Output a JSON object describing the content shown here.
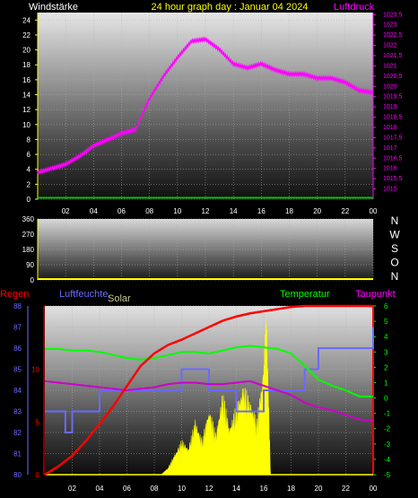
{
  "header": {
    "left_label": "Windstärke",
    "title": "24 hour graph day : Januar 04 2024",
    "right_label": "Luftdruck"
  },
  "legend2": {
    "regen": "Regen",
    "luftfeuchte": "Luftfeuchte",
    "solar": "Solar",
    "temperatur": "Temperatur",
    "taupunkt": "Taupunkt"
  },
  "colors": {
    "wind": "#00c000",
    "pressure": "#ff00ff",
    "rain": "#ff0000",
    "humidity": "#6a6aff",
    "solar": "#ffff00",
    "temperature": "#00ff00",
    "dewpoint": "#cc00cc",
    "title": "#ffff00"
  },
  "chart_data": [
    {
      "type": "line",
      "x_ticks": [
        "02",
        "04",
        "06",
        "08",
        "10",
        "12",
        "14",
        "16",
        "18",
        "20",
        "22",
        "00"
      ],
      "y_ticks_left": [
        "0",
        "2",
        "4",
        "6",
        "8",
        "10",
        "12",
        "14",
        "16",
        "18",
        "20",
        "22",
        "24"
      ],
      "y_ticks_right": [
        "1015",
        "1015,5",
        "1016",
        "1016,5",
        "1017",
        "1017,5",
        "1018",
        "1018,5",
        "1019",
        "1019,5",
        "1020",
        "1020,5",
        "1021",
        "1021,5",
        "1022",
        "1022,5",
        "1023",
        "1023,5"
      ],
      "ylim_left": [
        0,
        25
      ],
      "ylim_right": [
        1014.5,
        1023.6
      ],
      "series": [
        {
          "name": "Windstärke",
          "axis": "left",
          "x": [
            0,
            24
          ],
          "y": [
            0.2,
            0.2
          ]
        },
        {
          "name": "Luftdruck",
          "axis": "right",
          "x": [
            0,
            1,
            2,
            3,
            4,
            5,
            6,
            7,
            8,
            9,
            10,
            11,
            12,
            13,
            14,
            15,
            16,
            17,
            18,
            19,
            20,
            21,
            22,
            23,
            24
          ],
          "y": [
            1015.8,
            1016.0,
            1016.2,
            1016.6,
            1017.1,
            1017.4,
            1017.7,
            1017.9,
            1019.4,
            1020.5,
            1021.4,
            1022.2,
            1022.3,
            1021.8,
            1021.1,
            1020.9,
            1021.1,
            1020.8,
            1020.6,
            1020.6,
            1020.4,
            1020.4,
            1020.2,
            1019.8,
            1019.7
          ]
        }
      ]
    },
    {
      "type": "line",
      "x_ticks": [
        "02",
        "04",
        "06",
        "08",
        "10",
        "12",
        "14",
        "16",
        "18",
        "20",
        "22",
        "00"
      ],
      "y_ticks": [
        "0",
        "90",
        "180",
        "270",
        "360"
      ],
      "ylim": [
        0,
        360
      ],
      "right_labels": [
        "N",
        "W",
        "S",
        "O",
        "N"
      ],
      "series": [
        {
          "name": "Windrichtung",
          "x": [
            0,
            24
          ],
          "y": [
            0,
            0
          ]
        }
      ]
    },
    {
      "type": "line",
      "x_ticks": [
        "02",
        "04",
        "06",
        "08",
        "10",
        "12",
        "14",
        "16",
        "18",
        "20",
        "22",
        "00"
      ],
      "y_ticks_humidity": [
        "80",
        "81",
        "82",
        "83",
        "84",
        "85",
        "86",
        "87",
        "88"
      ],
      "ylim_humidity": [
        80,
        88
      ],
      "y_ticks_rain": [
        "0",
        "5",
        "10"
      ],
      "ylim_rain": [
        0,
        16
      ],
      "y_ticks_temp": [
        "-5",
        "-4",
        "-3",
        "-2",
        "-1",
        "0",
        "1",
        "2",
        "3",
        "4",
        "5",
        "6"
      ],
      "ylim_temp": [
        -5,
        6
      ],
      "series": [
        {
          "name": "Regen",
          "axis": "rain",
          "x": [
            0,
            1,
            2,
            3,
            4,
            5,
            6,
            7,
            8,
            9,
            10,
            11,
            12,
            13,
            14,
            15,
            16,
            17,
            18,
            19,
            20,
            21,
            22,
            23,
            24
          ],
          "y": [
            0,
            0.8,
            1.8,
            3.2,
            4.8,
            6.5,
            8.4,
            10.3,
            11.5,
            12.3,
            12.8,
            13.4,
            14.0,
            14.6,
            15.0,
            15.3,
            15.5,
            15.7,
            15.9,
            16.0,
            16.0,
            16.0,
            16.0,
            16.0,
            16.0
          ]
        },
        {
          "name": "Luftfeuchte",
          "axis": "humidity",
          "x": [
            0,
            1,
            1.5,
            2,
            3,
            4,
            5,
            6,
            7,
            8,
            9,
            10,
            11,
            12,
            13,
            14,
            15,
            16,
            17,
            18,
            19,
            20,
            21,
            22,
            23,
            24
          ],
          "y": [
            83,
            83,
            82,
            83,
            83,
            84,
            84,
            84,
            84,
            84,
            84,
            85,
            85,
            84,
            84,
            83,
            83,
            84,
            84,
            84,
            85,
            86,
            86,
            86,
            86,
            87
          ]
        },
        {
          "name": "Solar",
          "axis": "solar",
          "x": [
            8.5,
            9,
            9.5,
            10,
            10.5,
            11,
            11.5,
            12,
            12.5,
            13,
            13.5,
            14,
            14.5,
            15,
            15.5,
            16,
            16.2,
            16.5
          ],
          "y": [
            0,
            0.5,
            1.5,
            2.5,
            2,
            4,
            2.5,
            5,
            3,
            6,
            3.5,
            5,
            6.5,
            5.5,
            4,
            8,
            12,
            0
          ]
        },
        {
          "name": "Temperatur",
          "axis": "temp",
          "x": [
            0,
            1,
            2,
            3,
            4,
            5,
            6,
            7,
            8,
            9,
            10,
            11,
            12,
            13,
            14,
            15,
            16,
            17,
            18,
            19,
            20,
            21,
            22,
            23,
            24
          ],
          "y": [
            3.2,
            3.2,
            3.1,
            3.1,
            3.0,
            2.8,
            2.6,
            2.5,
            2.6,
            2.8,
            3.0,
            3.0,
            2.9,
            3.1,
            3.3,
            3.4,
            3.3,
            3.2,
            2.9,
            2.1,
            1.2,
            0.8,
            0.5,
            0.1,
            0.1
          ]
        },
        {
          "name": "Taupunkt",
          "axis": "temp",
          "x": [
            0,
            1,
            2,
            3,
            4,
            5,
            6,
            7,
            8,
            9,
            10,
            11,
            12,
            13,
            14,
            15,
            16,
            17,
            18,
            19,
            20,
            21,
            22,
            23,
            24
          ],
          "y": [
            1.1,
            1.0,
            0.9,
            0.8,
            0.7,
            0.6,
            0.5,
            0.6,
            0.7,
            0.9,
            1.0,
            1.0,
            0.9,
            0.9,
            1.0,
            1.1,
            0.8,
            0.5,
            0.2,
            -0.3,
            -0.6,
            -0.8,
            -1.1,
            -1.4,
            -1.5
          ]
        }
      ]
    }
  ]
}
